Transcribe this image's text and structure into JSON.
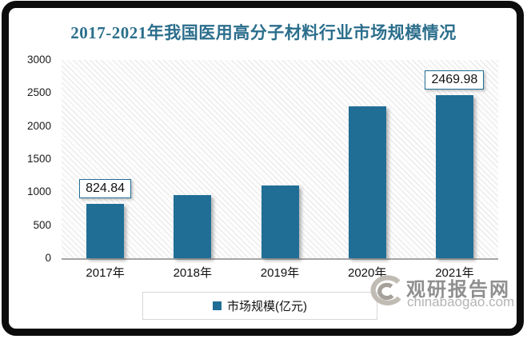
{
  "chart_data": {
    "type": "bar",
    "title": "2017-2021年我国医用高分子材料行业市场规模情况",
    "categories": [
      "2017年",
      "2018年",
      "2019年",
      "2020年",
      "2021年"
    ],
    "series": [
      {
        "name": "市场规模(亿元)",
        "values": [
          824.84,
          950,
          1100,
          2300,
          2469.98
        ]
      }
    ],
    "data_labels": [
      "824.84",
      null,
      null,
      null,
      "2469.98"
    ],
    "xlabel": "",
    "ylabel": "",
    "ylim": [
      0,
      3000
    ],
    "yticks": [
      0,
      500,
      1000,
      1500,
      2000,
      2500,
      3000
    ],
    "grid": false,
    "legend_position": "bottom",
    "plot_background": "diagonal-hatch"
  },
  "legend": {
    "label": "市场规模(亿元)"
  },
  "watermark": {
    "name": "观研报告网",
    "url": "chinabaogao.com"
  },
  "colors": {
    "bar": "#206e96",
    "title": "#2b6e8c",
    "frame": "#0c0c0c",
    "axis_line": "#a6a6a6",
    "watermark_gray": "#8f8f8f"
  }
}
